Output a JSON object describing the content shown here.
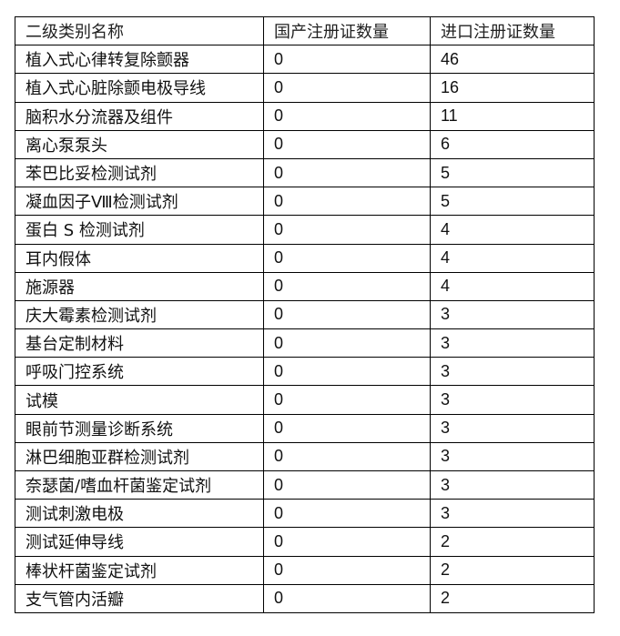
{
  "table": {
    "headers": [
      "二级类别名称",
      "国产注册证数量",
      "进口注册证数量"
    ],
    "rows": [
      [
        "植入式心律转复除颤器",
        "0",
        "46"
      ],
      [
        "植入式心脏除颤电极导线",
        "0",
        "16"
      ],
      [
        "脑积水分流器及组件",
        "0",
        "11"
      ],
      [
        "离心泵泵头",
        "0",
        "6"
      ],
      [
        "苯巴比妥检测试剂",
        "0",
        "5"
      ],
      [
        "凝血因子Ⅷ检测试剂",
        "0",
        "5"
      ],
      [
        "蛋白 S 检测试剂",
        "0",
        "4"
      ],
      [
        "耳内假体",
        "0",
        "4"
      ],
      [
        "施源器",
        "0",
        "4"
      ],
      [
        "庆大霉素检测试剂",
        "0",
        "3"
      ],
      [
        "基台定制材料",
        "0",
        "3"
      ],
      [
        "呼吸门控系统",
        "0",
        "3"
      ],
      [
        "试模",
        "0",
        "3"
      ],
      [
        "眼前节测量诊断系统",
        "0",
        "3"
      ],
      [
        "淋巴细胞亚群检测试剂",
        "0",
        "3"
      ],
      [
        "奈瑟菌/嗜血杆菌鉴定试剂",
        "0",
        "3"
      ],
      [
        "测试刺激电极",
        "0",
        "3"
      ],
      [
        "测试延伸导线",
        "0",
        "2"
      ],
      [
        "棒状杆菌鉴定试剂",
        "0",
        "2"
      ],
      [
        "支气管内活瓣",
        "0",
        "2"
      ]
    ]
  }
}
